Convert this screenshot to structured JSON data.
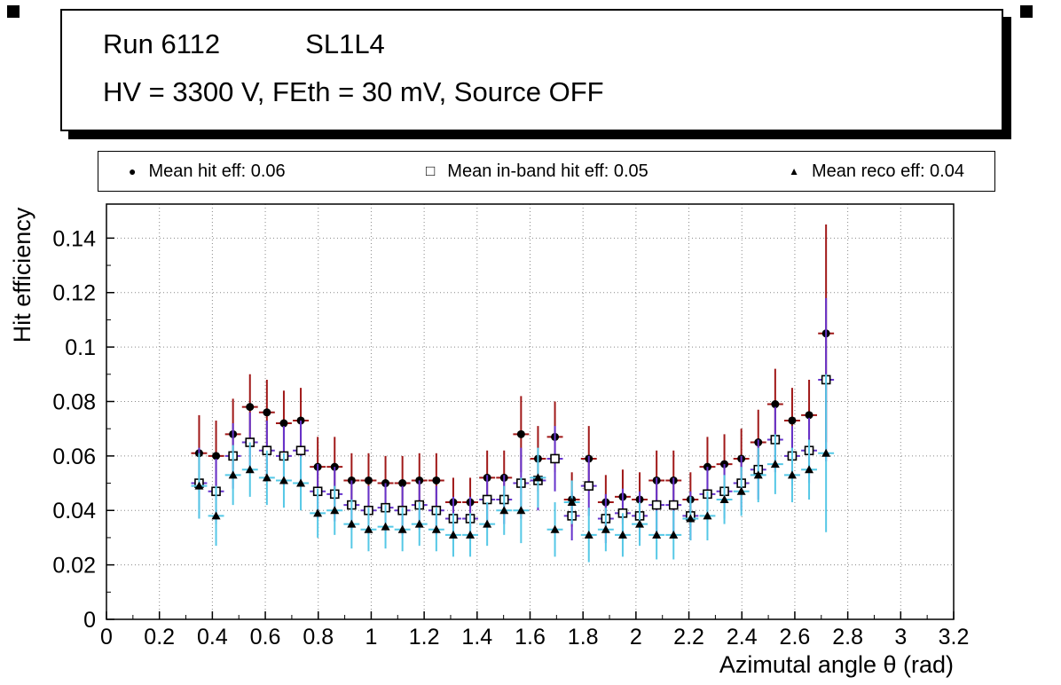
{
  "title": {
    "run": "Run 6112",
    "chamber": "SL1L4",
    "conditions": "HV = 3300 V, FEth = 30 mV, Source OFF"
  },
  "legend": {
    "entries": [
      {
        "glyph": "●",
        "label": "Mean hit  eff: 0.06",
        "marker": "filled-circle"
      },
      {
        "glyph": "□",
        "label": "Mean in-band hit eff: 0.05",
        "marker": "open-square"
      },
      {
        "glyph": "▲",
        "label": "Mean reco eff: 0.04",
        "marker": "filled-triangle"
      }
    ]
  },
  "chart_data": {
    "type": "scatter",
    "title": "",
    "xlabel": "Azimutal angle θ (rad)",
    "ylabel": "Hit efficiency",
    "xlim": [
      0,
      3.2
    ],
    "ylim": [
      0,
      0.1525
    ],
    "grid": true,
    "legend_position": "top",
    "xticks": {
      "values": [
        0,
        0.2,
        0.4,
        0.6,
        0.8,
        1,
        1.2,
        1.4,
        1.6,
        1.8,
        2,
        2.2,
        2.4,
        2.6,
        2.8,
        3,
        3.2
      ],
      "labels": [
        "0",
        "0.2",
        "0.4",
        "0.6",
        "0.8",
        "1",
        "1.2",
        "1.4",
        "1.6",
        "1.8",
        "2",
        "2.2",
        "2.4",
        "2.6",
        "2.8",
        "3",
        "3.2"
      ]
    },
    "yticks": {
      "values": [
        0,
        0.02,
        0.04,
        0.06,
        0.08,
        0.1,
        0.12,
        0.14
      ],
      "labels": [
        "0",
        "0.02",
        "0.04",
        "0.06",
        "0.08",
        "0.1",
        "0.12",
        "0.14"
      ]
    },
    "x": [
      0.35,
      0.414,
      0.478,
      0.542,
      0.606,
      0.67,
      0.734,
      0.798,
      0.862,
      0.926,
      0.99,
      1.054,
      1.118,
      1.182,
      1.246,
      1.31,
      1.374,
      1.438,
      1.502,
      1.566,
      1.63,
      1.694,
      1.758,
      1.822,
      1.886,
      1.95,
      2.014,
      2.078,
      2.142,
      2.206,
      2.27,
      2.334,
      2.398,
      2.462,
      2.526,
      2.59,
      2.654,
      2.718
    ],
    "xerr": 0.03,
    "series": [
      {
        "name": "Mean hit  eff: 0.06",
        "marker": "filled-circle",
        "marker_color": "#000000",
        "error_color": "#a01818",
        "y": [
          0.061,
          0.06,
          0.068,
          0.078,
          0.076,
          0.072,
          0.073,
          0.056,
          0.056,
          0.051,
          0.051,
          0.05,
          0.05,
          0.051,
          0.051,
          0.043,
          0.043,
          0.052,
          0.052,
          0.068,
          0.059,
          0.067,
          0.044,
          0.059,
          0.043,
          0.045,
          0.044,
          0.051,
          0.051,
          0.044,
          0.056,
          0.057,
          0.059,
          0.065,
          0.079,
          0.073,
          0.075,
          0.105
        ],
        "yerr": [
          0.014,
          0.013,
          0.013,
          0.012,
          0.012,
          0.012,
          0.012,
          0.011,
          0.011,
          0.01,
          0.01,
          0.01,
          0.01,
          0.01,
          0.01,
          0.009,
          0.009,
          0.01,
          0.01,
          0.014,
          0.012,
          0.013,
          0.01,
          0.012,
          0.01,
          0.01,
          0.01,
          0.011,
          0.011,
          0.01,
          0.011,
          0.011,
          0.011,
          0.012,
          0.013,
          0.012,
          0.013,
          0.04
        ]
      },
      {
        "name": "Mean in-band hit eff: 0.05",
        "marker": "open-square",
        "marker_color": "#000000",
        "error_color": "#6633cc",
        "y": [
          0.05,
          0.047,
          0.06,
          0.065,
          0.062,
          0.06,
          0.062,
          0.047,
          0.046,
          0.042,
          0.04,
          0.041,
          0.04,
          0.042,
          0.04,
          0.037,
          0.037,
          0.044,
          0.044,
          0.05,
          0.051,
          0.059,
          0.038,
          0.049,
          0.037,
          0.039,
          0.038,
          0.042,
          0.042,
          0.038,
          0.046,
          0.047,
          0.05,
          0.055,
          0.066,
          0.06,
          0.062,
          0.088
        ],
        "yerr": [
          0.013,
          0.012,
          0.012,
          0.011,
          0.011,
          0.011,
          0.011,
          0.01,
          0.01,
          0.009,
          0.009,
          0.009,
          0.009,
          0.009,
          0.009,
          0.008,
          0.008,
          0.009,
          0.009,
          0.013,
          0.011,
          0.012,
          0.009,
          0.011,
          0.009,
          0.009,
          0.009,
          0.01,
          0.01,
          0.009,
          0.01,
          0.01,
          0.01,
          0.011,
          0.012,
          0.011,
          0.012,
          0.03
        ]
      },
      {
        "name": "Mean reco eff: 0.04",
        "marker": "filled-triangle",
        "marker_color": "#000000",
        "error_color": "#55c8e6",
        "y": [
          0.049,
          0.038,
          0.053,
          0.055,
          0.052,
          0.051,
          0.05,
          0.039,
          0.04,
          0.035,
          0.033,
          0.034,
          0.033,
          0.035,
          0.033,
          0.031,
          0.031,
          0.035,
          0.04,
          0.04,
          0.052,
          0.033,
          0.043,
          0.031,
          0.033,
          0.031,
          0.035,
          0.031,
          0.031,
          0.037,
          0.038,
          0.044,
          0.047,
          0.053,
          0.057,
          0.053,
          0.055,
          0.061
        ],
        "yerr": [
          0.012,
          0.011,
          0.011,
          0.01,
          0.01,
          0.01,
          0.01,
          0.009,
          0.009,
          0.009,
          0.008,
          0.008,
          0.008,
          0.008,
          0.008,
          0.008,
          0.008,
          0.008,
          0.009,
          0.012,
          0.011,
          0.01,
          0.008,
          0.01,
          0.008,
          0.008,
          0.008,
          0.009,
          0.009,
          0.008,
          0.009,
          0.009,
          0.009,
          0.01,
          0.011,
          0.01,
          0.011,
          0.029
        ]
      }
    ]
  }
}
